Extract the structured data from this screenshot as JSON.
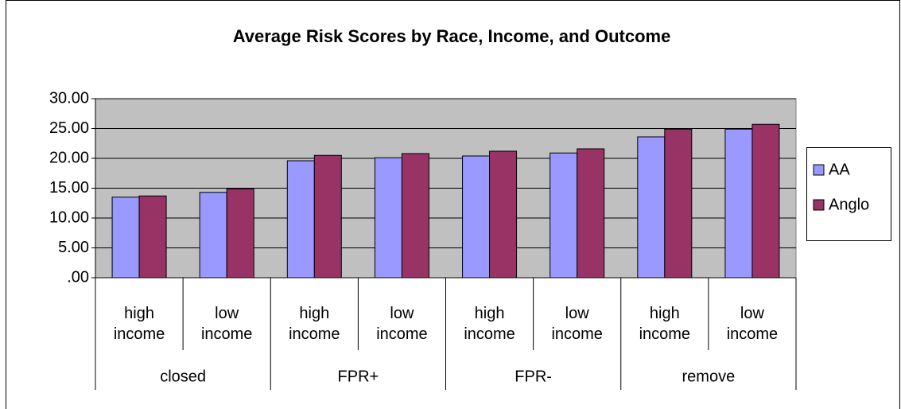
{
  "chart_data": {
    "type": "bar",
    "title": "Average Risk Scores by Race, Income, and Outcome",
    "categories": [
      "high income",
      "low income",
      "high income",
      "low income",
      "high income",
      "low income",
      "high income",
      "low income"
    ],
    "groups": [
      "closed",
      "FPR+",
      "FPR-",
      "remove"
    ],
    "series": [
      {
        "name": "AA",
        "color": "#9999ff",
        "values": [
          13.5,
          14.3,
          19.6,
          20.1,
          20.4,
          20.9,
          23.6,
          24.9
        ]
      },
      {
        "name": "Anglo",
        "color": "#993366",
        "values": [
          13.7,
          14.9,
          20.5,
          20.8,
          21.2,
          21.6,
          24.9,
          25.7
        ]
      }
    ],
    "ylim": [
      0,
      30
    ],
    "yticks": [
      {
        "value": 0,
        "label": ".00"
      },
      {
        "value": 5,
        "label": "5.00"
      },
      {
        "value": 10,
        "label": "10.00"
      },
      {
        "value": 15,
        "label": "15.00"
      },
      {
        "value": 20,
        "label": "20.00"
      },
      {
        "value": 25,
        "label": "25.00"
      },
      {
        "value": 30,
        "label": "30.00"
      }
    ],
    "grid": true,
    "legend": "right"
  }
}
